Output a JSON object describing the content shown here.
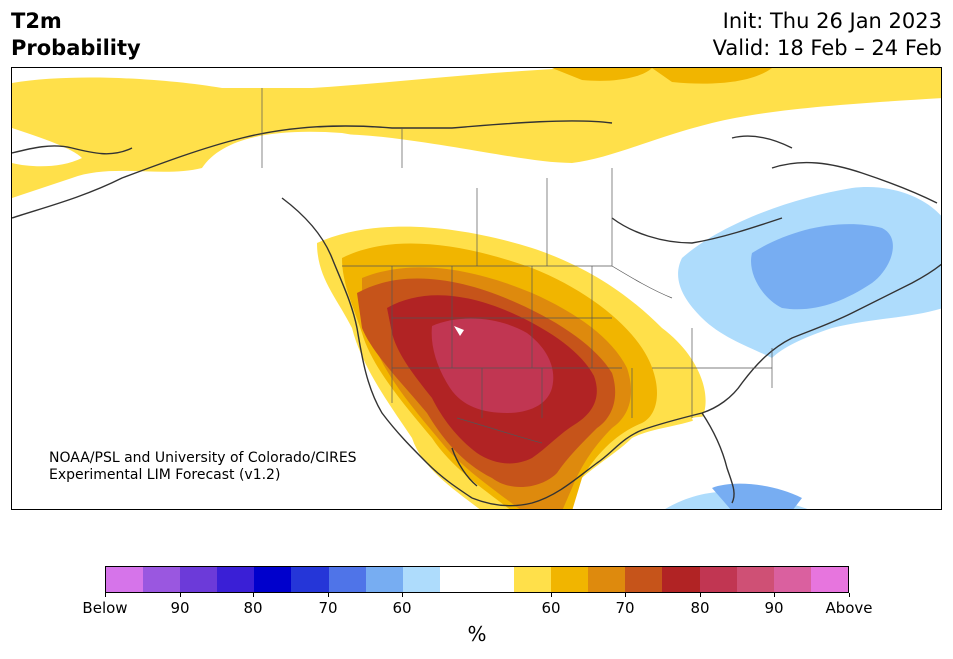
{
  "header": {
    "title_line1": "T2m",
    "title_line2": "Probability",
    "init": "Init: Thu 26 Jan 2023",
    "valid": "Valid: 18 Feb – 24 Feb"
  },
  "map": {
    "credit_line1": "NOAA/PSL and University of Colorado/CIRES",
    "credit_line2": "Experimental LIM Forecast (v1.2)"
  },
  "colorbar": {
    "colors": [
      "#d674ea",
      "#9a57e0",
      "#6c3ad9",
      "#3a1fd6",
      "#0000cc",
      "#2536d8",
      "#4f74e8",
      "#77adf2",
      "#aedcfc",
      "#ffffff",
      "#ffffff",
      "#ffe04a",
      "#f1b500",
      "#de8a0d",
      "#c6541a",
      "#b12324",
      "#c13652",
      "#cf5075",
      "#da609f",
      "#e775de"
    ],
    "tick_labels": [
      "Below",
      "90",
      "80",
      "70",
      "60",
      "60",
      "70",
      "80",
      "90",
      "Above"
    ],
    "unit": "%"
  }
}
